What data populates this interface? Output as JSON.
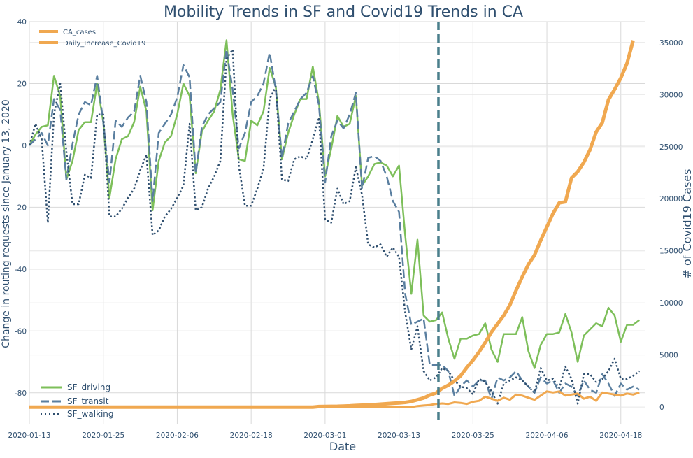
{
  "chart_data": {
    "type": "line",
    "title": "Mobility Trends in SF and Covid19 Trends in CA",
    "xlabel": "Date",
    "ylabel_left": "Change in routing requests since January 13, 2020",
    "ylabel_right": "# of Covid19 Cases",
    "xlim": [
      0,
      100
    ],
    "ylim_left": [
      -90,
      40
    ],
    "ylim_right": [
      -1600,
      37000
    ],
    "x_ticks": [
      {
        "pos": 0,
        "label": "2020-01-13"
      },
      {
        "pos": 12,
        "label": "2020-01-25"
      },
      {
        "pos": 24,
        "label": "2020-02-06"
      },
      {
        "pos": 36,
        "label": "2020-02-18"
      },
      {
        "pos": 48,
        "label": "2020-03-01"
      },
      {
        "pos": 60,
        "label": "2020-03-13"
      },
      {
        "pos": 72,
        "label": "2020-03-25"
      },
      {
        "pos": 84,
        "label": "2020-04-06"
      },
      {
        "pos": 96,
        "label": "2020-04-18"
      }
    ],
    "y_ticks_left": [
      -80,
      -60,
      -40,
      -20,
      0,
      20,
      40
    ],
    "y_ticks_right": [
      0,
      5000,
      10000,
      15000,
      20000,
      25000,
      30000,
      35000
    ],
    "vline": {
      "x": 66.4,
      "color": "#4a7f8c"
    },
    "legend_left": {
      "position": "lower-left"
    },
    "legend_right": {
      "position": "upper-left"
    },
    "series_left": [
      {
        "name": "SF_driving",
        "color": "#7dbf5a",
        "style": "solid",
        "values": [
          0,
          3.5,
          6,
          6.5,
          22.5,
          16,
          -11,
          -5,
          5,
          7.5,
          7.5,
          20,
          7.5,
          -17,
          -4.5,
          2,
          3,
          7.5,
          19,
          11,
          -21,
          -5,
          1,
          3,
          10,
          20,
          16,
          -9,
          4.5,
          8,
          11,
          18,
          34,
          10,
          -4.5,
          -5,
          8,
          6.5,
          11,
          25,
          19,
          -4.5,
          4,
          10,
          15,
          15,
          25.5,
          14,
          -10,
          -1,
          9.5,
          6,
          7,
          16,
          -13,
          -10,
          -6,
          -5.5,
          -6.5,
          -10,
          -6.5,
          -29,
          -48,
          -30.5,
          -55,
          -57,
          -56.5,
          -54,
          -62.5,
          -69,
          -62.5,
          -62.5,
          -61.5,
          -61,
          -57.5,
          -66,
          -70,
          -61,
          -61,
          -61,
          -55.5,
          -66.5,
          -72,
          -64.5,
          -61,
          -61,
          -60.5,
          -54.5,
          -60.5,
          -70,
          -61.5,
          -59.5,
          -57.5,
          -58.5,
          -52.5,
          -55,
          -63.5,
          -58,
          -58,
          -56.5
        ]
      },
      {
        "name": "SF_transit",
        "color": "#5a7fa0",
        "style": "dashed",
        "values": [
          0,
          2,
          4,
          0,
          15,
          11.5,
          -11,
          0.5,
          10,
          14,
          13,
          22.5,
          7.5,
          -12,
          8,
          6,
          9,
          11,
          22.5,
          14,
          -18,
          4,
          7,
          10,
          15.5,
          26,
          22,
          -9,
          6,
          10,
          12,
          14,
          31,
          18,
          -1,
          4,
          14,
          16,
          20,
          30,
          18,
          -4,
          7,
          11,
          15,
          17,
          22.5,
          13,
          -12,
          3,
          8,
          5.5,
          10,
          17,
          -14,
          -4,
          -3.5,
          -5,
          -10,
          -18,
          -21.5,
          -48,
          -58,
          -57,
          -56,
          -71,
          -71,
          -71,
          -73,
          -81,
          -78,
          -76,
          -78,
          -76,
          -76,
          -82,
          -75,
          -76,
          -75,
          -73,
          -76,
          -78,
          -80,
          -75,
          -77,
          -76,
          -80,
          -77,
          -78,
          -81,
          -76,
          -79,
          -80,
          -74,
          -77,
          -81,
          -77,
          -79,
          -78,
          -79
        ]
      },
      {
        "name": "SF_walking",
        "color": "#2f4f6f",
        "style": "dotted",
        "values": [
          0,
          7,
          2,
          -25,
          10,
          20,
          -2,
          -19,
          -19,
          -9.5,
          -10.5,
          10,
          10,
          -23,
          -23,
          -20.5,
          -17,
          -14,
          -8,
          -3,
          -29,
          -27.5,
          -23,
          -20.5,
          -17,
          -13,
          7,
          -21,
          -20,
          -14,
          -10,
          -5,
          28,
          31,
          -6.5,
          -19.5,
          -19.5,
          -14,
          -7.5,
          15,
          19,
          -11,
          -11.5,
          -4.5,
          -3.5,
          -4.5,
          2,
          9,
          -24,
          -25,
          -14,
          -19,
          -18,
          -7,
          -16,
          -32,
          -33,
          -32,
          -36,
          -33,
          -36,
          -54,
          -66,
          -58.5,
          -73,
          -76,
          -75,
          -72,
          -73,
          -76,
          -78,
          -78.5,
          -80.5,
          -75.5,
          -76.5,
          -79.5,
          -83.5,
          -77,
          -76,
          -75,
          -76,
          -78,
          -80,
          -72,
          -76,
          -75.5,
          -78.5,
          -71.5,
          -75.5,
          -83.5,
          -74,
          -74,
          -76.5,
          -75.5,
          -73,
          -69,
          -75.5,
          -75.5,
          -74.5,
          -73
        ]
      }
    ],
    "series_right": [
      {
        "name": "CA_cases",
        "color": "#f0a850",
        "style": "solid",
        "values": [
          0,
          0,
          0,
          0,
          0,
          0,
          0,
          0,
          0,
          0,
          0,
          0,
          0,
          0,
          0,
          0,
          0,
          0,
          0,
          0,
          0,
          0,
          0,
          0,
          0,
          0,
          0,
          0,
          0,
          0,
          0,
          0,
          0,
          0,
          0,
          0,
          0,
          0,
          0,
          0,
          0,
          0,
          0,
          0,
          0,
          0,
          0,
          50,
          60,
          70,
          80,
          100,
          120,
          150,
          180,
          200,
          240,
          280,
          320,
          360,
          400,
          450,
          540,
          700,
          870,
          1150,
          1350,
          1800,
          2100,
          2500,
          3000,
          3800,
          4500,
          5300,
          6200,
          7200,
          8000,
          8800,
          9800,
          11200,
          12500,
          13700,
          14600,
          16000,
          17300,
          18600,
          19600,
          19700,
          22000,
          22600,
          23500,
          24700,
          26400,
          27300,
          29500,
          30500,
          31600,
          33000,
          35200
        ]
      },
      {
        "name": "Daily_Increase_Covid19",
        "color": "#f0a850",
        "style": "solid",
        "values": [
          0,
          0,
          0,
          0,
          0,
          0,
          0,
          0,
          0,
          0,
          0,
          0,
          0,
          0,
          0,
          0,
          0,
          0,
          0,
          0,
          0,
          0,
          0,
          0,
          0,
          0,
          0,
          0,
          0,
          0,
          0,
          0,
          0,
          0,
          0,
          0,
          0,
          0,
          0,
          0,
          0,
          0,
          0,
          0,
          0,
          0,
          0,
          0,
          0,
          0,
          0,
          0,
          0,
          0,
          0,
          0,
          0,
          0,
          0,
          0,
          0,
          0,
          0,
          100,
          150,
          200,
          300,
          350,
          300,
          450,
          400,
          300,
          500,
          600,
          1000,
          800,
          600,
          900,
          700,
          1200,
          1100,
          900,
          700,
          1100,
          1500,
          1400,
          1500,
          1100,
          1200,
          1300,
          800,
          1000,
          600,
          1400,
          1300,
          1200,
          1100,
          1300,
          1200,
          1400
        ]
      }
    ]
  }
}
